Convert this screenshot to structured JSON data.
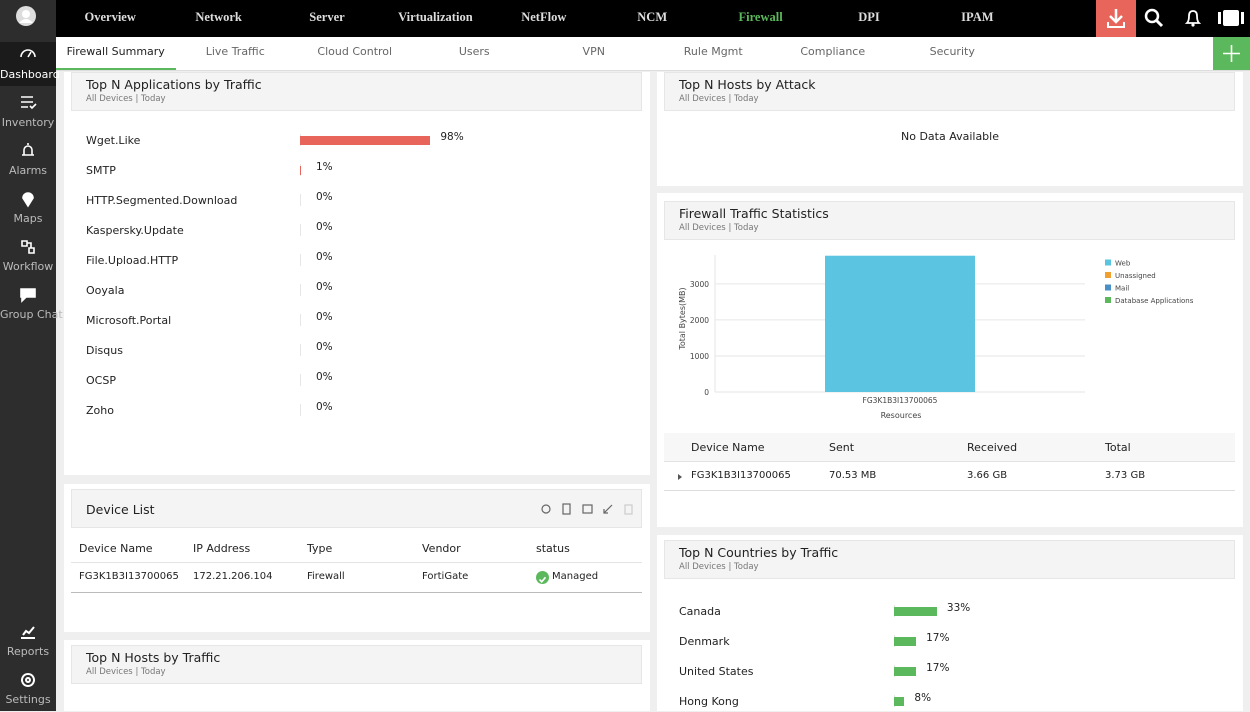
{
  "sidebar": {
    "items": [
      "Dashboard",
      "Inventory",
      "Alarms",
      "Maps",
      "Workflow",
      "Group Chat"
    ],
    "bottom": [
      "Reports",
      "Settings"
    ]
  },
  "nav": {
    "items": [
      "Overview",
      "Network",
      "Server",
      "Virtualization",
      "NetFlow",
      "NCM",
      "Firewall",
      "DPI",
      "IPAM"
    ]
  },
  "tabs": [
    "Firewall Summary",
    "Live Traffic",
    "Cloud Control",
    "Users",
    "VPN",
    "Rule Mgmt",
    "Compliance",
    "Security"
  ],
  "top_apps": {
    "title": "Top N Applications by Traffic",
    "subtitle": "All Devices | Today",
    "color": "#e8655c",
    "categories": [
      "Wget.Like",
      "SMTP",
      "HTTP.Segmented.Download",
      "Kaspersky.Update",
      "File.Upload.HTTP",
      "Ooyala",
      "Microsoft.Portal",
      "Disqus",
      "OCSP",
      "Zoho"
    ],
    "values": [
      98,
      1,
      0,
      0,
      0,
      0,
      0,
      0,
      0,
      0
    ],
    "value_labels": [
      "98%",
      "1%",
      "0%",
      "0%",
      "0%",
      "0%",
      "0%",
      "0%",
      "0%",
      "0%"
    ]
  },
  "device_list": {
    "title": "Device List",
    "columns": [
      "Device Name",
      "IP Address",
      "Type",
      "Vendor",
      "status"
    ],
    "rows": [
      [
        "FG3K1B3I13700065",
        "172.21.206.104",
        "Firewall",
        "FortiGate",
        "Managed"
      ]
    ]
  },
  "top_hosts_traffic": {
    "title": "Top N Hosts by Traffic",
    "subtitle": "All Devices | Today"
  },
  "top_hosts_attack": {
    "title": "Top N Hosts by Attack",
    "subtitle": "All Devices | Today",
    "message": "No Data Available"
  },
  "traffic_stats": {
    "title": "Firewall Traffic Statistics",
    "subtitle": "All Devices | Today",
    "chart": {
      "type": "bar",
      "y_label": "Total Bytes(MB)",
      "x_label": "Resources",
      "categories": [
        "FG3K1B3I13700065"
      ],
      "series": [
        {
          "name": "Web",
          "color": "#5bc4e0",
          "values": [
            3780
          ]
        },
        {
          "name": "Unassigned",
          "color": "#f0a030",
          "values": [
            0
          ]
        },
        {
          "name": "Mail",
          "color": "#4a90c8",
          "values": [
            0
          ]
        },
        {
          "name": "Database Applications",
          "color": "#5cb85c",
          "values": [
            0
          ]
        }
      ],
      "ylim": [
        0,
        3800
      ],
      "yticks": [
        0,
        1000,
        2000,
        3000
      ],
      "grid": true
    },
    "table": {
      "columns": [
        "Device Name",
        "Sent",
        "Received",
        "Total"
      ],
      "rows": [
        [
          "FG3K1B3I13700065",
          "70.53 MB",
          "3.66 GB",
          "3.73 GB"
        ]
      ]
    }
  },
  "top_countries": {
    "title": "Top N Countries by Traffic",
    "subtitle": "All Devices | Today",
    "color": "#5cb85c",
    "categories": [
      "Canada",
      "Denmark",
      "United States",
      "Hong Kong"
    ],
    "values": [
      33,
      17,
      17,
      8
    ],
    "value_labels": [
      "33%",
      "17%",
      "17%",
      "8%"
    ]
  }
}
